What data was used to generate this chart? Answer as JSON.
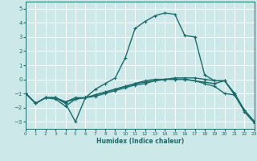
{
  "xlabel": "Humidex (Indice chaleur)",
  "bg_color": "#cce8e8",
  "grid_color": "#ffffff",
  "line_color": "#1a6b6b",
  "markersize": 2.5,
  "linewidth": 1.0,
  "xlim": [
    0,
    23
  ],
  "ylim": [
    -3.5,
    5.5
  ],
  "xticks": [
    0,
    1,
    2,
    3,
    4,
    5,
    6,
    7,
    8,
    9,
    10,
    11,
    12,
    13,
    14,
    15,
    16,
    17,
    18,
    19,
    20,
    21,
    22,
    23
  ],
  "yticks": [
    -3,
    -2,
    -1,
    0,
    1,
    2,
    3,
    4,
    5
  ],
  "lines": [
    {
      "x": [
        0,
        1,
        2,
        3,
        4,
        5,
        6,
        7,
        8,
        9,
        10,
        11,
        12,
        13,
        14,
        15,
        16,
        17,
        18,
        19,
        20,
        21,
        22,
        23
      ],
      "y": [
        -1.0,
        -1.7,
        -1.3,
        -1.3,
        -1.7,
        -3.0,
        -1.3,
        -0.7,
        -0.3,
        0.1,
        1.5,
        3.6,
        4.1,
        4.5,
        4.7,
        4.6,
        3.1,
        3.0,
        0.3,
        -0.1,
        -0.1,
        -1.1,
        -2.2,
        -3.0
      ]
    },
    {
      "x": [
        0,
        1,
        2,
        3,
        4,
        5,
        6,
        7,
        8,
        9,
        10,
        11,
        12,
        13,
        14,
        15,
        16,
        17,
        18,
        19,
        20,
        21,
        22,
        23
      ],
      "y": [
        -1.0,
        -1.7,
        -1.3,
        -1.3,
        -1.6,
        -1.3,
        -1.3,
        -1.1,
        -0.9,
        -0.7,
        -0.5,
        -0.3,
        -0.2,
        -0.1,
        0.0,
        0.1,
        0.1,
        0.1,
        0.0,
        -0.1,
        -0.1,
        -1.0,
        -2.2,
        -3.0
      ]
    },
    {
      "x": [
        0,
        1,
        2,
        3,
        4,
        5,
        6,
        7,
        8,
        9,
        10,
        11,
        12,
        13,
        14,
        15,
        16,
        17,
        18,
        19,
        20,
        21,
        22,
        23
      ],
      "y": [
        -1.0,
        -1.7,
        -1.3,
        -1.4,
        -1.9,
        -1.4,
        -1.3,
        -1.2,
        -1.0,
        -0.8,
        -0.6,
        -0.4,
        -0.3,
        -0.1,
        0.0,
        0.0,
        0.0,
        -0.1,
        -0.2,
        -0.3,
        -0.1,
        -1.0,
        -2.2,
        -3.0
      ]
    },
    {
      "x": [
        0,
        1,
        2,
        3,
        4,
        5,
        6,
        7,
        8,
        9,
        10,
        11,
        12,
        13,
        14,
        15,
        16,
        17,
        18,
        19,
        20,
        21,
        22,
        23
      ],
      "y": [
        -1.0,
        -1.7,
        -1.3,
        -1.3,
        -1.6,
        -1.4,
        -1.3,
        -1.1,
        -0.9,
        -0.7,
        -0.5,
        -0.3,
        -0.1,
        0.0,
        0.0,
        0.0,
        0.0,
        -0.1,
        -0.3,
        -0.5,
        -1.0,
        -1.1,
        -2.3,
        -3.1
      ]
    }
  ]
}
